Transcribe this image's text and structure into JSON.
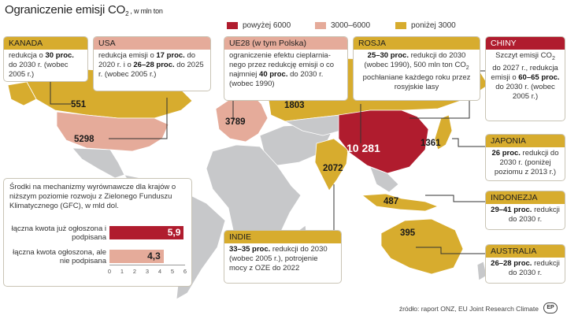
{
  "title": {
    "main": "Ograniczenie emisji CO",
    "sub": "2",
    "unit": ", w mln ton"
  },
  "legend": [
    {
      "label": "powyżej 6000",
      "color": "#b01c2e"
    },
    {
      "label": "3000–6000",
      "color": "#e5ab9a"
    },
    {
      "label": "poniżej 3000",
      "color": "#d7ac2e"
    }
  ],
  "regions": {
    "kanada": {
      "name": "KANADA",
      "value": "551",
      "category": "poniżej 3000",
      "text": [
        [
          "redukcja o ",
          ""
        ],
        [
          "30 proc.",
          "b"
        ],
        [
          " do 2030 r. (wobec 2005 r.)",
          ""
        ]
      ]
    },
    "usa": {
      "name": "USA",
      "value": "5298",
      "category": "3000–6000",
      "text": [
        [
          "redukcja emisji o ",
          ""
        ],
        [
          "17 proc.",
          "b"
        ],
        [
          " do 2020 r. i o ",
          ""
        ],
        [
          "26–28 proc.",
          "b"
        ],
        [
          " do 2025 r. (wobec 2005 r.)",
          ""
        ]
      ]
    },
    "ue": {
      "name": "UE28 (w tym Polska)",
      "value": "3789",
      "category": "3000–6000",
      "text": [
        [
          "ograniczenie efektu cieplarnia-nego przez redukcję emisji o co najmniej ",
          ""
        ],
        [
          "40 proc.",
          "b"
        ],
        [
          " do 2030 r. (wobec 1990)",
          ""
        ]
      ]
    },
    "rosja": {
      "name": "ROSJA",
      "value": "1803",
      "category": "poniżej 3000",
      "text": [
        [
          "25–30 proc.",
          "b"
        ],
        [
          " redukcji do 2030 (wobec 1990), 500 mln ton CO",
          ""
        ],
        [
          "2",
          "sub"
        ],
        [
          " pochłaniane każdego roku przez rosyjskie lasy",
          ""
        ]
      ]
    },
    "chiny": {
      "name": "CHINY",
      "value": "10 281",
      "category": "powyżej 6000",
      "text": [
        [
          "Szczyt emisji CO",
          ""
        ],
        [
          "2",
          "sub"
        ],
        [
          " do 2027 r., redukcja emisji o ",
          ""
        ],
        [
          "60–65 proc.",
          "b"
        ],
        [
          " do 2030 r. (wobec 2005 r.)",
          ""
        ]
      ]
    },
    "japonia": {
      "name": "JAPONIA",
      "value": "1361",
      "category": "poniżej 3000",
      "text": [
        [
          "26 proc.",
          "b"
        ],
        [
          " redukcji do 2030 r. (poniżej poziomu z 2013 r.)",
          ""
        ]
      ]
    },
    "indonezja": {
      "name": "INDONEZJA",
      "value": "487",
      "category": "poniżej 3000",
      "text": [
        [
          "29–41 proc.",
          "b"
        ],
        [
          " redukcji do 2030 r.",
          ""
        ]
      ]
    },
    "australia": {
      "name": "AUSTRALIA",
      "value": "395",
      "category": "poniżej 3000",
      "text": [
        [
          "26–28 proc.",
          "b"
        ],
        [
          " redukcji do 2030 r.",
          ""
        ]
      ]
    },
    "indie": {
      "name": "INDIE",
      "value": "2072",
      "category": "poniżej 3000",
      "text": [
        [
          "33–35 proc.",
          "b"
        ],
        [
          " redukcji do 2030 (wobec 2005 r.), potrojenie mocy z OZE do 2022",
          ""
        ]
      ]
    }
  },
  "gcf": {
    "intro": "Środki na mechanizmy wyrównawcze dla krajów o niższym poziomie rozwoju z Zielonego Funduszu Klimatycznego (GFC), w mld dol.",
    "bars": [
      {
        "label": "łączna kwota już ogłoszona i podpisana",
        "value": 5.9,
        "display": "5,9",
        "color": "#b01c2e"
      },
      {
        "label": "łączna kwota ogłoszona, ale nie podpisana",
        "value": 4.3,
        "display": "4,3",
        "color": "#e5ab9a"
      }
    ],
    "ticks": [
      "0",
      "1",
      "2",
      "3",
      "4",
      "5",
      "6"
    ],
    "max": 6
  },
  "source": "źródło: raport ONZ, EU Joint Research Climate",
  "logo": "EP"
}
